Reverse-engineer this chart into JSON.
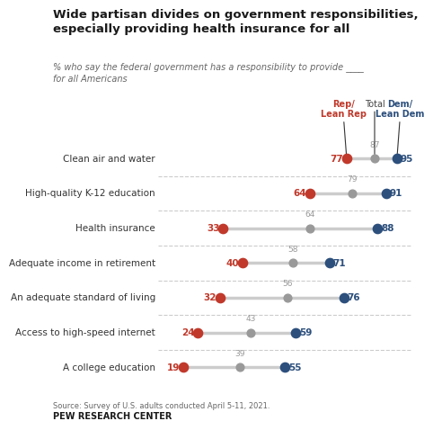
{
  "title": "Wide partisan divides on government responsibilities,\nespecially providing health insurance for all",
  "subtitle": "% who say the federal government has a responsibility to provide ____\nfor all Americans",
  "categories": [
    "Clean air and water",
    "High-quality K-12 education",
    "Health insurance",
    "Adequate income in retirement",
    "An adequate standard of living",
    "Access to high-speed internet",
    "A college education"
  ],
  "rep_values": [
    77,
    64,
    33,
    40,
    32,
    24,
    19
  ],
  "total_values": [
    87,
    79,
    64,
    58,
    56,
    43,
    39
  ],
  "dem_values": [
    95,
    91,
    88,
    71,
    76,
    59,
    55
  ],
  "rep_color": "#c0392b",
  "total_color": "#999999",
  "dem_color": "#2c4f7c",
  "line_color": "#cccccc",
  "background_color": "#ffffff",
  "source_text": "Source: Survey of U.S. adults conducted April 5-11, 2021.",
  "footer_text": "PEW RESEARCH CENTER",
  "title_color": "#1a1a1a",
  "subtitle_color": "#666666"
}
